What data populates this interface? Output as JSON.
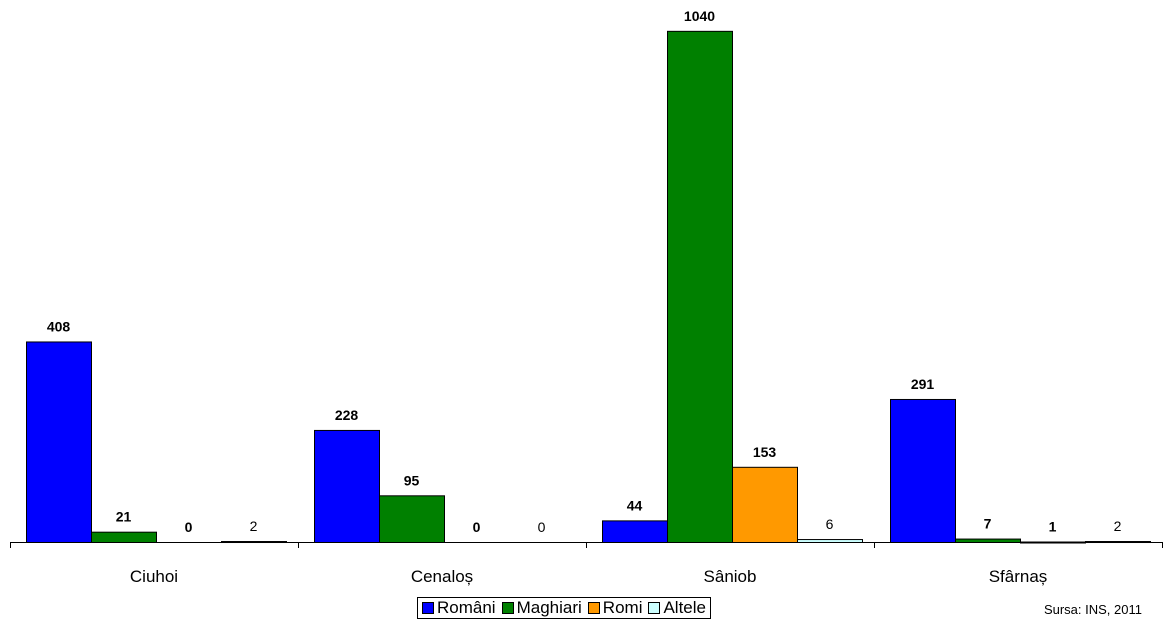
{
  "chart_data": {
    "type": "bar",
    "categories": [
      "Ciuhoi",
      "Cenaloș",
      "Sâniob",
      "Sfârnaș"
    ],
    "series": [
      {
        "name": "Români",
        "values": [
          408,
          228,
          44,
          291
        ],
        "color": "#0000ff",
        "label_bold": true
      },
      {
        "name": "Maghiari",
        "values": [
          21,
          95,
          1040,
          7
        ],
        "color": "#008000",
        "label_bold": true
      },
      {
        "name": "Romi",
        "values": [
          0,
          0,
          153,
          1
        ],
        "color": "#ff9900",
        "label_bold": true
      },
      {
        "name": "Altele",
        "values": [
          2,
          0,
          6,
          2
        ],
        "color": "#ccffff",
        "label_bold": false
      }
    ],
    "ylim": [
      0,
      1060
    ],
    "grid": false,
    "legend_position": "bottom-center"
  },
  "source_note": "Sursa: INS, 2011"
}
